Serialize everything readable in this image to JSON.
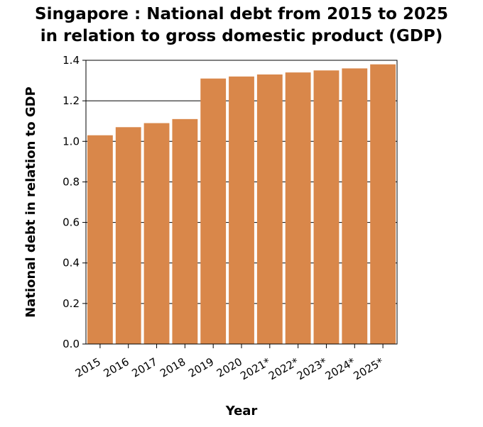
{
  "chart_data": {
    "type": "bar",
    "title_lines": [
      "Singapore : National debt from 2015 to 2025",
      "in relation to gross domestic product (GDP)"
    ],
    "xlabel": "Year",
    "ylabel": "National debt in relation to GDP",
    "categories": [
      "2015",
      "2016",
      "2017",
      "2018",
      "2019",
      "2020",
      "2021*",
      "2022*",
      "2023*",
      "2024*",
      "2025*"
    ],
    "values": [
      1.03,
      1.07,
      1.09,
      1.11,
      1.31,
      1.32,
      1.33,
      1.34,
      1.35,
      1.36,
      1.38
    ],
    "ylim": [
      0,
      1.4
    ],
    "yticks": [
      "0.0",
      "0.2",
      "0.4",
      "0.6",
      "0.8",
      "1.0",
      "1.2",
      "1.4"
    ],
    "grid": true,
    "bar_color": "#d9874a"
  }
}
